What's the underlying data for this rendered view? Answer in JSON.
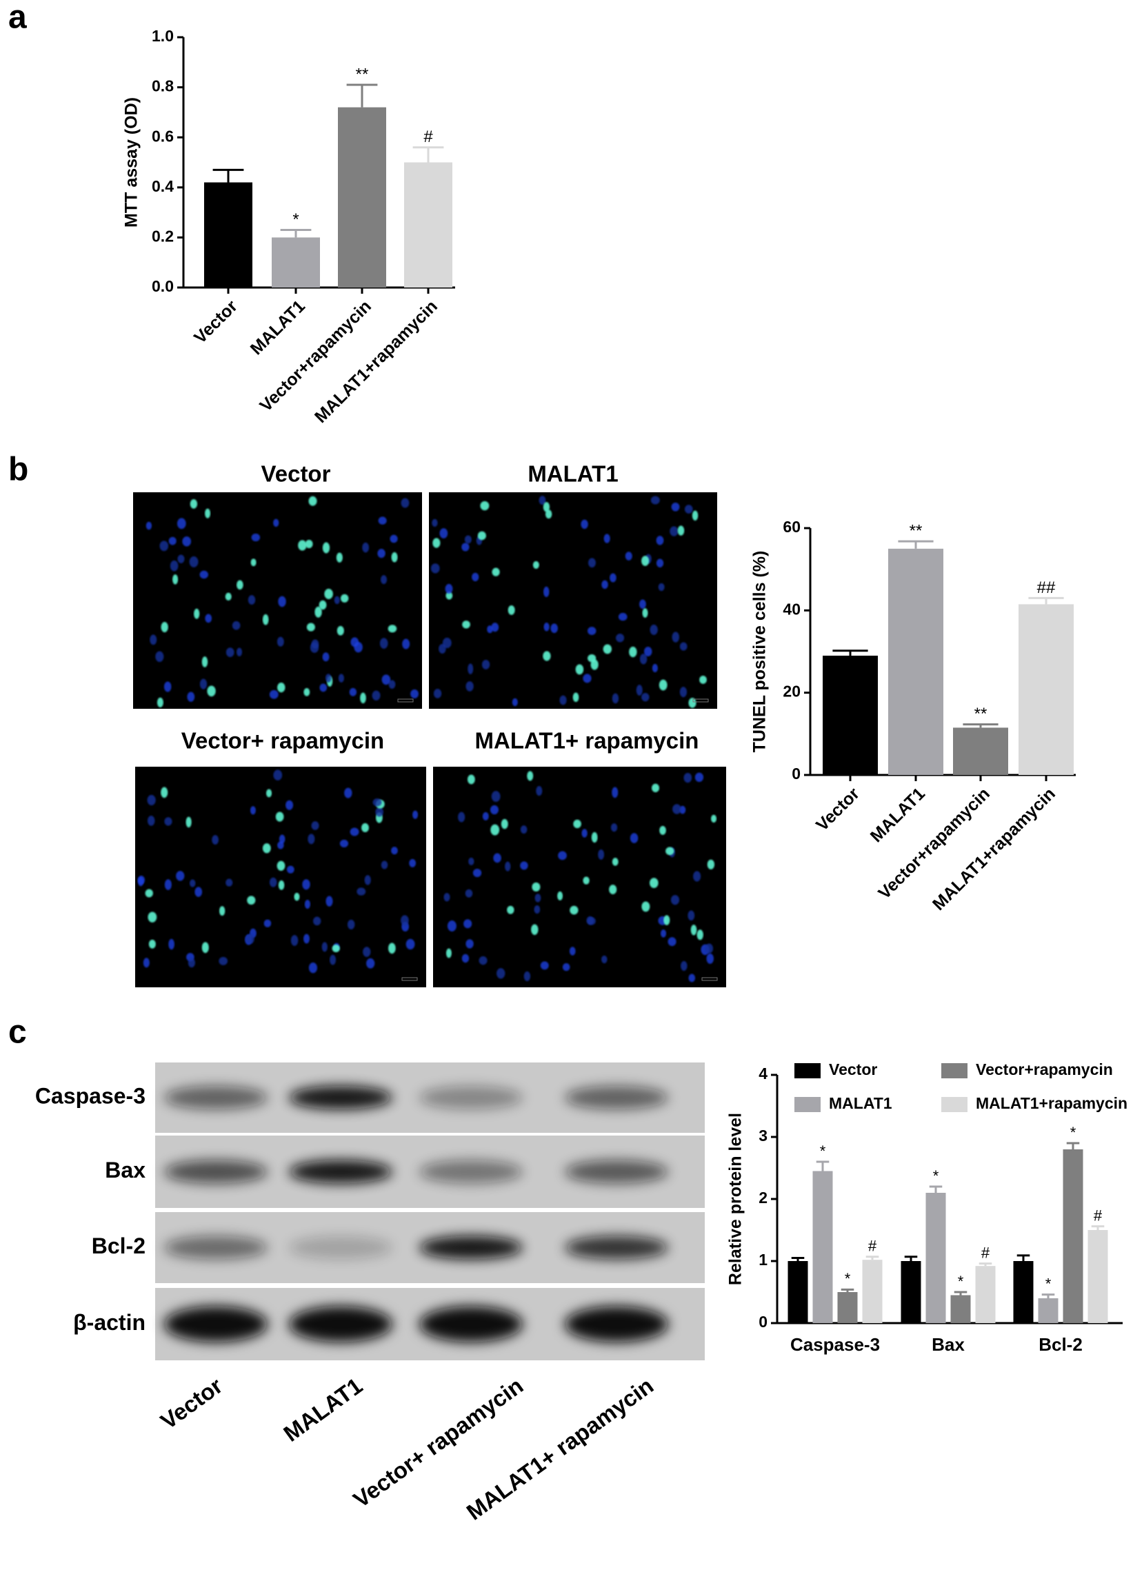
{
  "panel_labels": [
    "a",
    "b",
    "c"
  ],
  "micrographs": {
    "titles": [
      "Vector",
      "MALAT1",
      "Vector+ rapamycin",
      "MALAT1+ rapamycin"
    ]
  },
  "blot": {
    "proteins": [
      "Caspase-3",
      "Bax",
      "Bcl-2",
      "β-actin"
    ],
    "lanes": [
      "Vector",
      "MALAT1",
      "Vector+ rapamycin",
      "MALAT1+ rapamycin"
    ]
  },
  "chart_data": [
    {
      "type": "bar",
      "y_label": "MTT assay (OD)",
      "categories": [
        "Vector",
        "MALAT1",
        "Vector+rapamycin",
        "MALAT1+rapamycin"
      ],
      "values": [
        0.42,
        0.2,
        0.72,
        0.5
      ],
      "errors": [
        0.05,
        0.03,
        0.09,
        0.06
      ],
      "annotations": [
        null,
        "*",
        "**",
        "#"
      ],
      "colors": [
        "#000000",
        "#a6a6ab",
        "#7f7f7f",
        "#d9d9d9"
      ],
      "ylim": [
        0,
        1
      ],
      "yticks": [
        {
          "value": 0,
          "label": "0.0"
        },
        0.2,
        0.4,
        0.6,
        0.8,
        {
          "value": 1,
          "label": "1.0"
        }
      ]
    },
    {
      "type": "bar",
      "y_label": "TUNEL positive cells (%)",
      "categories": [
        "Vector",
        "MALAT1",
        "Vector+rapamycin",
        "MALAT1+rapamycin"
      ],
      "values": [
        29,
        55,
        11.5,
        41.5
      ],
      "errors": [
        1.2,
        1.8,
        0.8,
        1.5
      ],
      "annotations": [
        null,
        "**",
        "**",
        "##"
      ],
      "colors": [
        "#000000",
        "#a6a6ab",
        "#7f7f7f",
        "#d9d9d9"
      ],
      "ylim": [
        0,
        60
      ],
      "yticks": [
        0,
        20,
        40,
        60
      ]
    },
    {
      "type": "grouped_bar",
      "y_label": "Relative protein level",
      "categories": [
        "Caspase-3",
        "Bax",
        "Bcl-2"
      ],
      "series": [
        {
          "name": "Vector",
          "color": "#000000",
          "values": [
            1.0,
            1.0,
            1.0
          ],
          "errors": [
            0.05,
            0.07,
            0.09
          ]
        },
        {
          "name": "MALAT1",
          "color": "#a6a6ab",
          "values": [
            2.45,
            2.1,
            0.4
          ],
          "errors": [
            0.15,
            0.1,
            0.06
          ],
          "annotations": [
            "*",
            "*",
            "*"
          ]
        },
        {
          "name": "Vector+rapamycin",
          "color": "#7f7f7f",
          "values": [
            0.5,
            0.45,
            2.8
          ],
          "errors": [
            0.04,
            0.05,
            0.1
          ],
          "annotations": [
            "*",
            "*",
            "*"
          ]
        },
        {
          "name": "MALAT1+rapamycin",
          "color": "#d9d9d9",
          "values": [
            1.02,
            0.92,
            1.5
          ],
          "errors": [
            0.05,
            0.04,
            0.06
          ],
          "annotations": [
            "#",
            "#",
            "#"
          ]
        }
      ],
      "legend": "top",
      "ylim": [
        0,
        4
      ],
      "yticks": [
        0,
        1,
        2,
        3,
        4
      ]
    }
  ]
}
